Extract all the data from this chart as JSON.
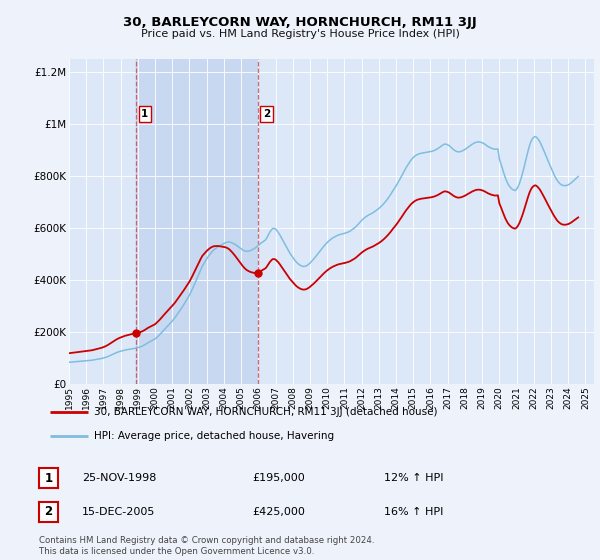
{
  "title": "30, BARLEYCORN WAY, HORNCHURCH, RM11 3JJ",
  "subtitle": "Price paid vs. HM Land Registry's House Price Index (HPI)",
  "background_color": "#eef2fb",
  "plot_background": "#dce8f8",
  "highlight_color": "#c8d8f0",
  "legend_label_red": "30, BARLEYCORN WAY, HORNCHURCH, RM11 3JJ (detached house)",
  "legend_label_blue": "HPI: Average price, detached house, Havering",
  "transactions": [
    {
      "date_dec": 1998.9,
      "price": 195000,
      "label": "1",
      "date_str": "25-NOV-1998",
      "pct": "12%"
    },
    {
      "date_dec": 2005.96,
      "price": 425000,
      "label": "2",
      "date_str": "15-DEC-2005",
      "pct": "16%"
    }
  ],
  "footer": "Contains HM Land Registry data © Crown copyright and database right 2024.\nThis data is licensed under the Open Government Licence v3.0.",
  "ylim": [
    0,
    1250000
  ],
  "yticks": [
    0,
    200000,
    400000,
    600000,
    800000,
    1000000,
    1200000
  ],
  "ytick_labels": [
    "£0",
    "£200K",
    "£400K",
    "£600K",
    "£800K",
    "£1M",
    "£1.2M"
  ],
  "hpi_color": "#7fbde0",
  "price_color": "#cc0000",
  "marker_color": "#cc0000",
  "xtick_years": [
    1995,
    1996,
    1997,
    1998,
    1999,
    2000,
    2001,
    2002,
    2003,
    2004,
    2005,
    2006,
    2007,
    2008,
    2009,
    2010,
    2011,
    2012,
    2013,
    2014,
    2015,
    2016,
    2017,
    2018,
    2019,
    2020,
    2021,
    2022,
    2023,
    2024,
    2025
  ],
  "hpi_dates": [
    1995.0,
    1995.083,
    1995.167,
    1995.25,
    1995.333,
    1995.417,
    1995.5,
    1995.583,
    1995.667,
    1995.75,
    1995.833,
    1995.917,
    1996.0,
    1996.083,
    1996.167,
    1996.25,
    1996.333,
    1996.417,
    1996.5,
    1996.583,
    1996.667,
    1996.75,
    1996.833,
    1996.917,
    1997.0,
    1997.083,
    1997.167,
    1997.25,
    1997.333,
    1997.417,
    1997.5,
    1997.583,
    1997.667,
    1997.75,
    1997.833,
    1997.917,
    1998.0,
    1998.083,
    1998.167,
    1998.25,
    1998.333,
    1998.417,
    1998.5,
    1998.583,
    1998.667,
    1998.75,
    1998.833,
    1998.917,
    1999.0,
    1999.083,
    1999.167,
    1999.25,
    1999.333,
    1999.417,
    1999.5,
    1999.583,
    1999.667,
    1999.75,
    1999.833,
    1999.917,
    2000.0,
    2000.083,
    2000.167,
    2000.25,
    2000.333,
    2000.417,
    2000.5,
    2000.583,
    2000.667,
    2000.75,
    2000.833,
    2000.917,
    2001.0,
    2001.083,
    2001.167,
    2001.25,
    2001.333,
    2001.417,
    2001.5,
    2001.583,
    2001.667,
    2001.75,
    2001.833,
    2001.917,
    2002.0,
    2002.083,
    2002.167,
    2002.25,
    2002.333,
    2002.417,
    2002.5,
    2002.583,
    2002.667,
    2002.75,
    2002.833,
    2002.917,
    2003.0,
    2003.083,
    2003.167,
    2003.25,
    2003.333,
    2003.417,
    2003.5,
    2003.583,
    2003.667,
    2003.75,
    2003.833,
    2003.917,
    2004.0,
    2004.083,
    2004.167,
    2004.25,
    2004.333,
    2004.417,
    2004.5,
    2004.583,
    2004.667,
    2004.75,
    2004.833,
    2004.917,
    2005.0,
    2005.083,
    2005.167,
    2005.25,
    2005.333,
    2005.417,
    2005.5,
    2005.583,
    2005.667,
    2005.75,
    2005.833,
    2005.917,
    2006.0,
    2006.083,
    2006.167,
    2006.25,
    2006.333,
    2006.417,
    2006.5,
    2006.583,
    2006.667,
    2006.75,
    2006.833,
    2006.917,
    2007.0,
    2007.083,
    2007.167,
    2007.25,
    2007.333,
    2007.417,
    2007.5,
    2007.583,
    2007.667,
    2007.75,
    2007.833,
    2007.917,
    2008.0,
    2008.083,
    2008.167,
    2008.25,
    2008.333,
    2008.417,
    2008.5,
    2008.583,
    2008.667,
    2008.75,
    2008.833,
    2008.917,
    2009.0,
    2009.083,
    2009.167,
    2009.25,
    2009.333,
    2009.417,
    2009.5,
    2009.583,
    2009.667,
    2009.75,
    2009.833,
    2009.917,
    2010.0,
    2010.083,
    2010.167,
    2010.25,
    2010.333,
    2010.417,
    2010.5,
    2010.583,
    2010.667,
    2010.75,
    2010.833,
    2010.917,
    2011.0,
    2011.083,
    2011.167,
    2011.25,
    2011.333,
    2011.417,
    2011.5,
    2011.583,
    2011.667,
    2011.75,
    2011.833,
    2011.917,
    2012.0,
    2012.083,
    2012.167,
    2012.25,
    2012.333,
    2012.417,
    2012.5,
    2012.583,
    2012.667,
    2012.75,
    2012.833,
    2012.917,
    2013.0,
    2013.083,
    2013.167,
    2013.25,
    2013.333,
    2013.417,
    2013.5,
    2013.583,
    2013.667,
    2013.75,
    2013.833,
    2013.917,
    2014.0,
    2014.083,
    2014.167,
    2014.25,
    2014.333,
    2014.417,
    2014.5,
    2014.583,
    2014.667,
    2014.75,
    2014.833,
    2014.917,
    2015.0,
    2015.083,
    2015.167,
    2015.25,
    2015.333,
    2015.417,
    2015.5,
    2015.583,
    2015.667,
    2015.75,
    2015.833,
    2015.917,
    2016.0,
    2016.083,
    2016.167,
    2016.25,
    2016.333,
    2016.417,
    2016.5,
    2016.583,
    2016.667,
    2016.75,
    2016.833,
    2016.917,
    2017.0,
    2017.083,
    2017.167,
    2017.25,
    2017.333,
    2017.417,
    2017.5,
    2017.583,
    2017.667,
    2017.75,
    2017.833,
    2017.917,
    2018.0,
    2018.083,
    2018.167,
    2018.25,
    2018.333,
    2018.417,
    2018.5,
    2018.583,
    2018.667,
    2018.75,
    2018.833,
    2018.917,
    2019.0,
    2019.083,
    2019.167,
    2019.25,
    2019.333,
    2019.417,
    2019.5,
    2019.583,
    2019.667,
    2019.75,
    2019.833,
    2019.917,
    2020.0,
    2020.083,
    2020.167,
    2020.25,
    2020.333,
    2020.417,
    2020.5,
    2020.583,
    2020.667,
    2020.75,
    2020.833,
    2020.917,
    2021.0,
    2021.083,
    2021.167,
    2021.25,
    2021.333,
    2021.417,
    2021.5,
    2021.583,
    2021.667,
    2021.75,
    2021.833,
    2021.917,
    2022.0,
    2022.083,
    2022.167,
    2022.25,
    2022.333,
    2022.417,
    2022.5,
    2022.583,
    2022.667,
    2022.75,
    2022.833,
    2022.917,
    2023.0,
    2023.083,
    2023.167,
    2023.25,
    2023.333,
    2023.417,
    2023.5,
    2023.583,
    2023.667,
    2023.75,
    2023.833,
    2023.917,
    2024.0,
    2024.083,
    2024.167,
    2024.25,
    2024.333,
    2024.417,
    2024.5,
    2024.583
  ],
  "hpi_values": [
    82000,
    82500,
    83000,
    83500,
    84000,
    84500,
    85000,
    85500,
    86000,
    86500,
    87000,
    87500,
    88000,
    88500,
    89000,
    89500,
    90000,
    91000,
    92000,
    93000,
    94000,
    95000,
    96000,
    97000,
    98500,
    100000,
    102000,
    104000,
    106500,
    109000,
    111500,
    114000,
    116500,
    119000,
    121000,
    123000,
    124500,
    126000,
    127500,
    129000,
    130000,
    131000,
    132000,
    133000,
    134000,
    135000,
    136000,
    137000,
    138500,
    140000,
    142000,
    144000,
    147000,
    150000,
    153500,
    157000,
    160000,
    163000,
    166000,
    169000,
    172000,
    177000,
    182000,
    187000,
    193000,
    199000,
    205000,
    211000,
    217000,
    223000,
    229000,
    235000,
    241000,
    248000,
    255000,
    263000,
    271000,
    279000,
    287000,
    295000,
    304000,
    313000,
    322000,
    331000,
    341000,
    352000,
    364000,
    376000,
    389000,
    402000,
    415000,
    428000,
    441000,
    453000,
    462000,
    471000,
    480000,
    488000,
    496000,
    503000,
    509000,
    515000,
    519000,
    523000,
    527000,
    530000,
    533000,
    536000,
    539000,
    542000,
    544000,
    545000,
    545000,
    543000,
    541000,
    538000,
    535000,
    531000,
    527000,
    523000,
    519000,
    515000,
    512000,
    510000,
    509000,
    510000,
    511000,
    513000,
    516000,
    519000,
    523000,
    527000,
    532000,
    537000,
    541000,
    545000,
    549000,
    553000,
    562000,
    572000,
    583000,
    591000,
    597000,
    597000,
    595000,
    588000,
    581000,
    572000,
    562000,
    552000,
    541000,
    531000,
    521000,
    511000,
    502000,
    494000,
    486000,
    478000,
    471000,
    465000,
    460000,
    456000,
    453000,
    451000,
    451000,
    452000,
    455000,
    459000,
    464000,
    470000,
    476000,
    482000,
    489000,
    496000,
    503000,
    510000,
    517000,
    524000,
    531000,
    537000,
    543000,
    548000,
    553000,
    557000,
    561000,
    564000,
    567000,
    570000,
    572000,
    574000,
    575000,
    577000,
    578000,
    580000,
    582000,
    584000,
    587000,
    591000,
    595000,
    599000,
    604000,
    610000,
    616000,
    622000,
    628000,
    633000,
    638000,
    642000,
    646000,
    649000,
    652000,
    655000,
    658000,
    662000,
    666000,
    670000,
    674000,
    679000,
    684000,
    690000,
    696000,
    703000,
    710000,
    718000,
    726000,
    735000,
    744000,
    752000,
    761000,
    770000,
    780000,
    790000,
    800000,
    811000,
    821000,
    831000,
    840000,
    849000,
    857000,
    864000,
    870000,
    875000,
    879000,
    882000,
    884000,
    886000,
    887000,
    888000,
    889000,
    890000,
    891000,
    892000,
    893000,
    894000,
    896000,
    898000,
    901000,
    904000,
    908000,
    912000,
    916000,
    920000,
    922000,
    921000,
    919000,
    916000,
    911000,
    906000,
    901000,
    897000,
    894000,
    892000,
    892000,
    893000,
    895000,
    898000,
    901000,
    905000,
    909000,
    913000,
    917000,
    921000,
    924000,
    927000,
    929000,
    930000,
    930000,
    929000,
    927000,
    924000,
    921000,
    917000,
    913000,
    910000,
    907000,
    905000,
    903000,
    902000,
    902000,
    903000,
    865000,
    848000,
    830000,
    812000,
    795000,
    781000,
    769000,
    760000,
    753000,
    748000,
    745000,
    743000,
    748000,
    757000,
    770000,
    787000,
    806000,
    827000,
    850000,
    873000,
    895000,
    915000,
    931000,
    942000,
    948000,
    951000,
    948000,
    941000,
    933000,
    922000,
    910000,
    897000,
    884000,
    870000,
    857000,
    844000,
    831000,
    818000,
    806000,
    795000,
    785000,
    777000,
    771000,
    766000,
    763000,
    762000,
    762000,
    763000,
    765000,
    768000,
    772000,
    777000,
    782000,
    787000,
    792000,
    797000
  ],
  "price_paid_dates": [
    1998.9,
    2005.96
  ],
  "price_paid_values": [
    195000,
    425000
  ]
}
